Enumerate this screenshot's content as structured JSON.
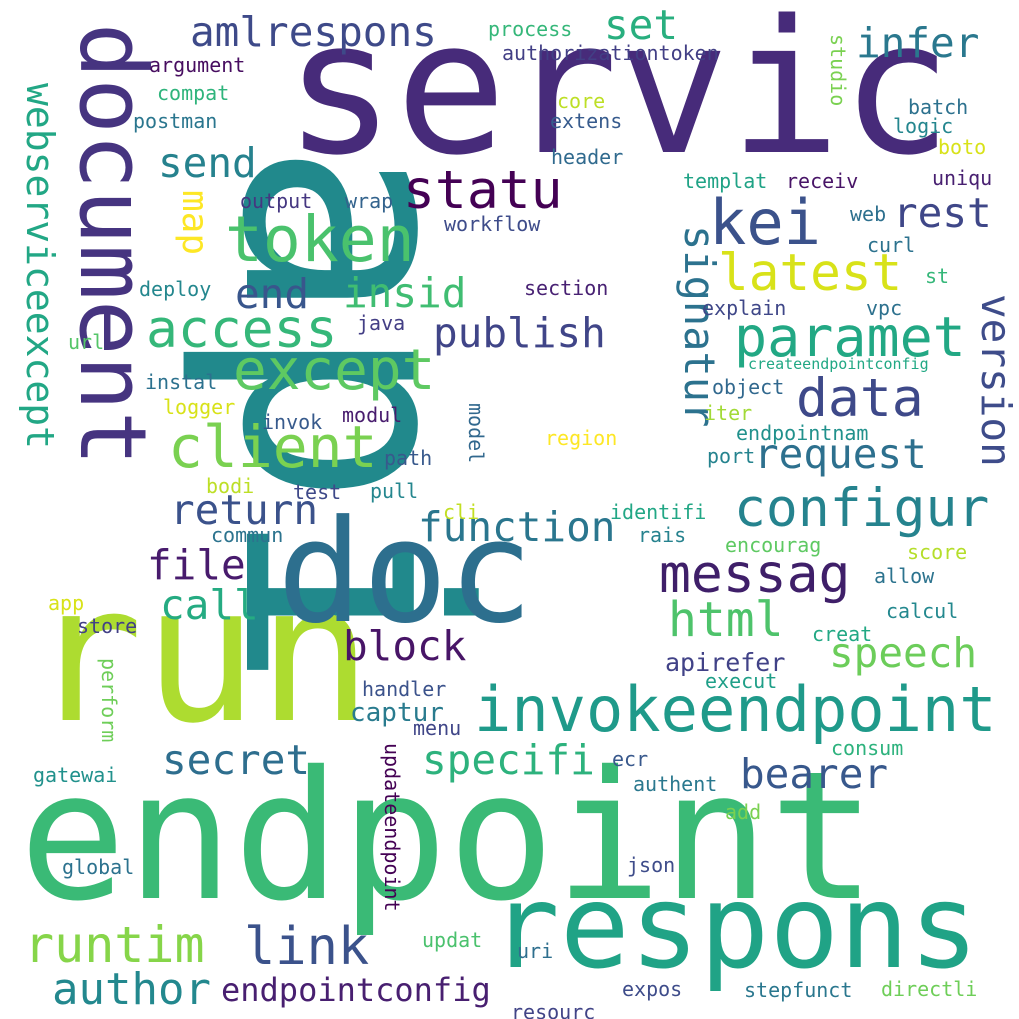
{
  "words": [
    {
      "text": "api",
      "color": "#21898c"
    },
    {
      "text": "servic",
      "color": "#472b7a"
    },
    {
      "text": "endpoint",
      "color": "#3aba76"
    },
    {
      "text": "run",
      "color": "#addc30"
    },
    {
      "text": "document",
      "color": "#463480"
    },
    {
      "text": "doc",
      "color": "#2d6f8e"
    },
    {
      "text": "respons",
      "color": "#20a386"
    },
    {
      "text": "invokeendpoint",
      "color": "#1f9a8a"
    },
    {
      "text": "token",
      "color": "#4ac26d"
    },
    {
      "text": "statu",
      "color": "#440154"
    },
    {
      "text": "kei",
      "color": "#3b528b"
    },
    {
      "text": "latest",
      "color": "#d8e219"
    },
    {
      "text": "paramet",
      "color": "#22a884"
    },
    {
      "text": "access",
      "color": "#35b779"
    },
    {
      "text": "except",
      "color": "#5ec962"
    },
    {
      "text": "client",
      "color": "#7ad151"
    },
    {
      "text": "data",
      "color": "#3e4989"
    },
    {
      "text": "configur",
      "color": "#25838e"
    },
    {
      "text": "messag",
      "color": "#3f1f69"
    },
    {
      "text": "runtim",
      "color": "#86d549"
    },
    {
      "text": "author",
      "color": "#23888e"
    },
    {
      "text": "link",
      "color": "#3b528b"
    },
    {
      "text": "endpointconfig",
      "color": "#481f70"
    },
    {
      "text": "webserviceexcept",
      "color": "#22a785"
    },
    {
      "text": "amlrespons",
      "color": "#3e4a89"
    },
    {
      "text": "set",
      "color": "#29af7f"
    },
    {
      "text": "infer",
      "color": "#2a788e"
    },
    {
      "text": "send",
      "color": "#26828e"
    },
    {
      "text": "rest",
      "color": "#3f4788"
    },
    {
      "text": "insid",
      "color": "#40bd72"
    },
    {
      "text": "end",
      "color": "#39568c"
    },
    {
      "text": "publish",
      "color": "#404588"
    },
    {
      "text": "signatur",
      "color": "#2c728e"
    },
    {
      "text": "version",
      "color": "#3e4c8a"
    },
    {
      "text": "request",
      "color": "#2d708e"
    },
    {
      "text": "return",
      "color": "#3b528b"
    },
    {
      "text": "function",
      "color": "#2a768e"
    },
    {
      "text": "file",
      "color": "#481b6d"
    },
    {
      "text": "call",
      "color": "#25ab82"
    },
    {
      "text": "html",
      "color": "#4ec36b"
    },
    {
      "text": "speech",
      "color": "#6ccd5a"
    },
    {
      "text": "block",
      "color": "#481567"
    },
    {
      "text": "apirefer",
      "color": "#414287"
    },
    {
      "text": "captur",
      "color": "#297b8e"
    },
    {
      "text": "secret",
      "color": "#2e6e8e"
    },
    {
      "text": "specifi",
      "color": "#2db27d"
    },
    {
      "text": "bearer",
      "color": "#38588c"
    },
    {
      "text": "map",
      "color": "#fde725"
    },
    {
      "text": "model",
      "color": "#31688e"
    },
    {
      "text": "updateendpoint",
      "color": "#440154"
    },
    {
      "text": "perform",
      "color": "#6ece58"
    },
    {
      "text": "process",
      "color": "#35b779"
    },
    {
      "text": "authorizationtoken",
      "color": "#423f85"
    },
    {
      "text": "argument",
      "color": "#470d60"
    },
    {
      "text": "compat",
      "color": "#2fb47c"
    },
    {
      "text": "postman",
      "color": "#2a768e"
    },
    {
      "text": "core",
      "color": "#bddf26"
    },
    {
      "text": "extens",
      "color": "#375b8d"
    },
    {
      "text": "studio",
      "color": "#7ad151"
    },
    {
      "text": "batch",
      "color": "#2c718e"
    },
    {
      "text": "logic",
      "color": "#24868e"
    },
    {
      "text": "boto",
      "color": "#d8e219"
    },
    {
      "text": "header",
      "color": "#306a8e"
    },
    {
      "text": "uniqu",
      "color": "#482071"
    },
    {
      "text": "templat",
      "color": "#20a386"
    },
    {
      "text": "receiv",
      "color": "#481467"
    },
    {
      "text": "output",
      "color": "#453781"
    },
    {
      "text": "wrap",
      "color": "#33638d"
    },
    {
      "text": "workflow",
      "color": "#3e4c8a"
    },
    {
      "text": "web",
      "color": "#2d708e"
    },
    {
      "text": "curl",
      "color": "#2c728e"
    },
    {
      "text": "deploy",
      "color": "#24878e"
    },
    {
      "text": "section",
      "color": "#482173"
    },
    {
      "text": "st",
      "color": "#35b779"
    },
    {
      "text": "explain",
      "color": "#3f4788"
    },
    {
      "text": "vpc",
      "color": "#2d718e"
    },
    {
      "text": "url",
      "color": "#54c568"
    },
    {
      "text": "java",
      "color": "#433e85"
    },
    {
      "text": "createendpointconfig",
      "color": "#22a884"
    },
    {
      "text": "instal",
      "color": "#2c718e"
    },
    {
      "text": "object",
      "color": "#31688e"
    },
    {
      "text": "logger",
      "color": "#d8e219"
    },
    {
      "text": "iter",
      "color": "#a2da37"
    },
    {
      "text": "invok",
      "color": "#375a8c"
    },
    {
      "text": "modul",
      "color": "#481c6e"
    },
    {
      "text": "endpointnam",
      "color": "#21918c"
    },
    {
      "text": "region",
      "color": "#fde725"
    },
    {
      "text": "path",
      "color": "#38598c"
    },
    {
      "text": "port",
      "color": "#25838e"
    },
    {
      "text": "bodi",
      "color": "#bddf26"
    },
    {
      "text": "test",
      "color": "#3e4989"
    },
    {
      "text": "pull",
      "color": "#24868e"
    },
    {
      "text": "cli",
      "color": "#c2df23"
    },
    {
      "text": "identifi",
      "color": "#22a785"
    },
    {
      "text": "commun",
      "color": "#2c738e"
    },
    {
      "text": "rais",
      "color": "#26828e"
    },
    {
      "text": "encourag",
      "color": "#5ec962"
    },
    {
      "text": "score",
      "color": "#b5de2b"
    },
    {
      "text": "allow",
      "color": "#2c738e"
    },
    {
      "text": "app",
      "color": "#d8e219"
    },
    {
      "text": "store",
      "color": "#424086"
    },
    {
      "text": "calcul",
      "color": "#23888e"
    },
    {
      "text": "creat",
      "color": "#22a884"
    },
    {
      "text": "handler",
      "color": "#3b528b"
    },
    {
      "text": "execut",
      "color": "#1f9f88"
    },
    {
      "text": "menu",
      "color": "#404688"
    },
    {
      "text": "consum",
      "color": "#2db27d"
    },
    {
      "text": "gatewai",
      "color": "#21918c"
    },
    {
      "text": "ecr",
      "color": "#38588c"
    },
    {
      "text": "authent",
      "color": "#2a788e"
    },
    {
      "text": "add",
      "color": "#7ad151"
    },
    {
      "text": "global",
      "color": "#2c728e"
    },
    {
      "text": "json",
      "color": "#3e4c8a"
    },
    {
      "text": "updat",
      "color": "#4ac16d"
    },
    {
      "text": "uri",
      "color": "#2e6f8e"
    },
    {
      "text": "resourc",
      "color": "#414487"
    },
    {
      "text": "expos",
      "color": "#3e4c8a"
    },
    {
      "text": "stepfunct",
      "color": "#2a778e"
    },
    {
      "text": "directli",
      "color": "#6ece58"
    }
  ]
}
